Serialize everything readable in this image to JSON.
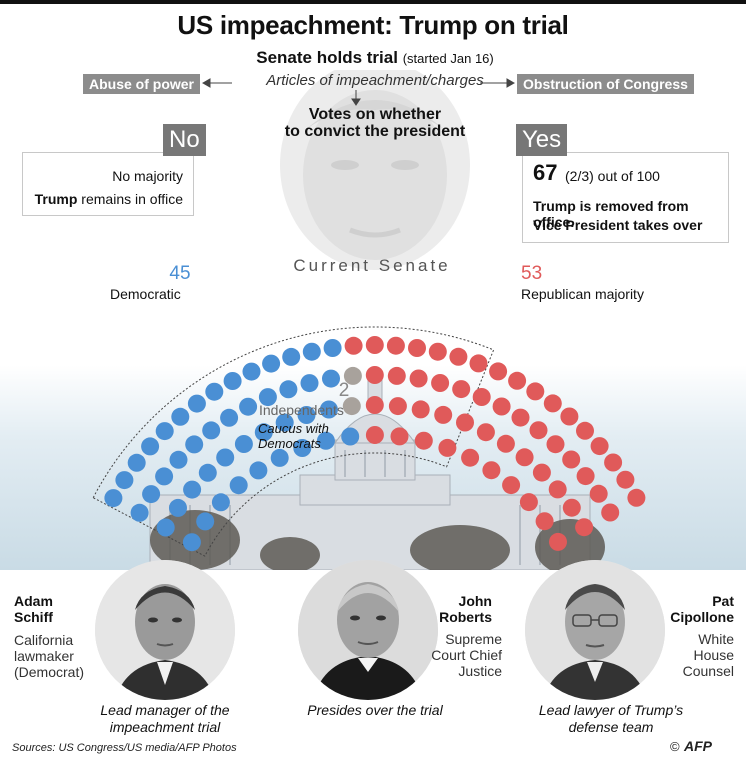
{
  "title": "US impeachment: Trump on trial",
  "trial": {
    "label": "Senate holds trial",
    "started": "(started Jan 16)",
    "articles": "Articles of impeachment/charges",
    "charge_left": "Abuse of power",
    "charge_right": "Obstruction of Congress",
    "votes_line1": "Votes on whether",
    "votes_line2": "to convict the president"
  },
  "outcomes": {
    "no": {
      "tag": "No",
      "line1": "No majority",
      "line2_bold": "Trump",
      "line2_rest": " remains in office"
    },
    "yes": {
      "tag": "Yes",
      "number": "67",
      "fraction": "(2/3) out of 100",
      "line1": "Trump is removed from office.",
      "line2": "Vice President takes over"
    }
  },
  "senate": {
    "label": "Current Senate",
    "democrats": {
      "count": "45",
      "label": "Democratic",
      "color": "#4a8fd4"
    },
    "republicans": {
      "count": "53",
      "label": "Republican majority",
      "color": "#e05a5a"
    },
    "independents": {
      "count": "2",
      "label": "Independents",
      "note_line1": "Caucus with",
      "note_line2": "Democrats",
      "color": "#a8a29c"
    },
    "threshold": 67
  },
  "people": [
    {
      "name_line1": "Adam",
      "name_line2": "Schiff",
      "role_line1": "California",
      "role_line2": "lawmaker",
      "role_line3": "(Democrat)",
      "caption_line1": "Lead manager of the",
      "caption_line2": "impeachment trial"
    },
    {
      "name_line1": "John",
      "name_line2": "Roberts",
      "role_line1": "Supreme",
      "role_line2": "Court Chief",
      "role_line3": "Justice",
      "caption_line1": "Presides over the trial",
      "caption_line2": ""
    },
    {
      "name_line1": "Pat",
      "name_line2": "Cipollone",
      "role_line1": "White",
      "role_line2": "House",
      "role_line3": "Counsel",
      "caption_line1": "Lead lawyer of Trump’s",
      "caption_line2": "defense team"
    }
  ],
  "footer": {
    "source": "Sources: US Congress/US media/AFP Photos",
    "credit_symbol": "©",
    "credit": "AFP"
  }
}
